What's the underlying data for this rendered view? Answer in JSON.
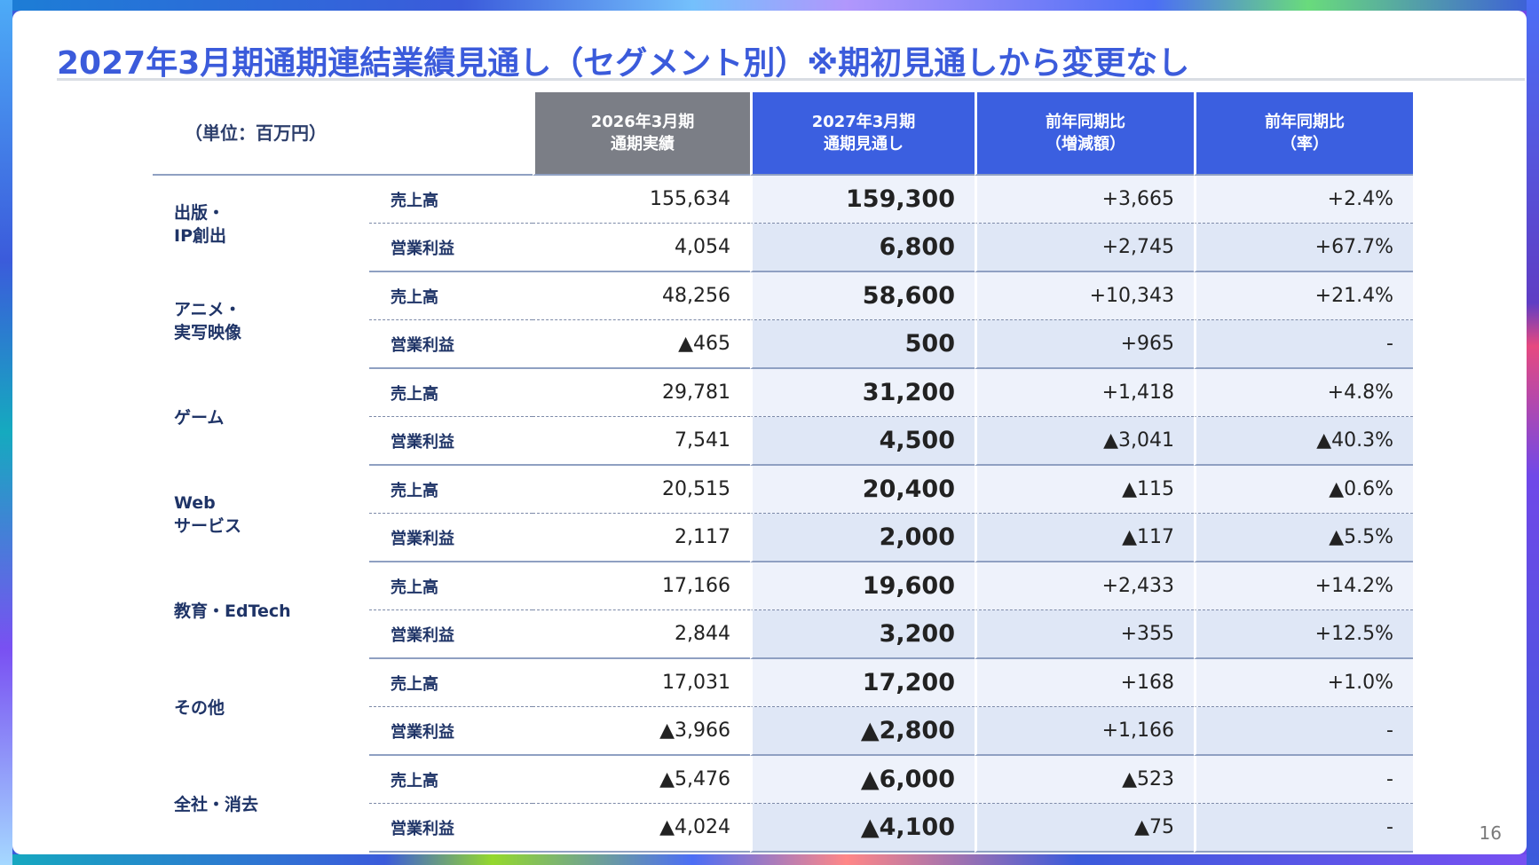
{
  "title": "2027年3月期通期連結業績見通し（セグメント別）※期初見通しから変更なし",
  "unit": "（単位：百万円）",
  "columns": [
    {
      "line1": "2026年3月期",
      "line2": "通期実績"
    },
    {
      "line1": "2027年3月期",
      "line2": "通期見通し"
    },
    {
      "line1": "前年同期比",
      "line2": "（増減額）"
    },
    {
      "line1": "前年同期比",
      "line2": "（率）"
    }
  ],
  "segments": [
    {
      "name_l1": "出版・",
      "name_l2": "IP創出",
      "rows": [
        {
          "metric": "売上高",
          "actual": "155,634",
          "forecast": "159,300",
          "diff": "+3,665",
          "rate": "+2.4%"
        },
        {
          "metric": "営業利益",
          "actual": "4,054",
          "forecast": "6,800",
          "diff": "+2,745",
          "rate": "+67.7%"
        }
      ]
    },
    {
      "name_l1": "アニメ・",
      "name_l2": "実写映像",
      "rows": [
        {
          "metric": "売上高",
          "actual": "48,256",
          "forecast": "58,600",
          "diff": "+10,343",
          "rate": "+21.4%"
        },
        {
          "metric": "営業利益",
          "actual": "▲465",
          "forecast": "500",
          "diff": "+965",
          "rate": "-"
        }
      ]
    },
    {
      "name_l1": "ゲーム",
      "name_l2": "",
      "rows": [
        {
          "metric": "売上高",
          "actual": "29,781",
          "forecast": "31,200",
          "diff": "+1,418",
          "rate": "+4.8%"
        },
        {
          "metric": "営業利益",
          "actual": "7,541",
          "forecast": "4,500",
          "diff": "▲3,041",
          "rate": "▲40.3%"
        }
      ]
    },
    {
      "name_l1": "Web",
      "name_l2": "サービス",
      "rows": [
        {
          "metric": "売上高",
          "actual": "20,515",
          "forecast": "20,400",
          "diff": "▲115",
          "rate": "▲0.6%"
        },
        {
          "metric": "営業利益",
          "actual": "2,117",
          "forecast": "2,000",
          "diff": "▲117",
          "rate": "▲5.5%"
        }
      ]
    },
    {
      "name_l1": "教育・EdTech",
      "name_l2": "",
      "rows": [
        {
          "metric": "売上高",
          "actual": "17,166",
          "forecast": "19,600",
          "diff": "+2,433",
          "rate": "+14.2%"
        },
        {
          "metric": "営業利益",
          "actual": "2,844",
          "forecast": "3,200",
          "diff": "+355",
          "rate": "+12.5%"
        }
      ]
    },
    {
      "name_l1": "その他",
      "name_l2": "",
      "rows": [
        {
          "metric": "売上高",
          "actual": "17,031",
          "forecast": "17,200",
          "diff": "+168",
          "rate": "+1.0%"
        },
        {
          "metric": "営業利益",
          "actual": "▲3,966",
          "forecast": "▲2,800",
          "diff": "+1,166",
          "rate": "-"
        }
      ]
    },
    {
      "name_l1": "全社・消去",
      "name_l2": "",
      "rows": [
        {
          "metric": "売上高",
          "actual": "▲5,476",
          "forecast": "▲6,000",
          "diff": "▲523",
          "rate": "-"
        },
        {
          "metric": "営業利益",
          "actual": "▲4,024",
          "forecast": "▲4,100",
          "diff": "▲75",
          "rate": "-"
        }
      ]
    }
  ],
  "page_number": "16"
}
